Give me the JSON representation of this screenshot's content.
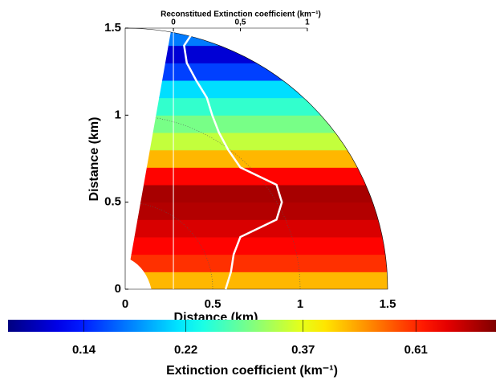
{
  "chart_data": {
    "type": "polar-sector-heatmap",
    "xlabel": "Distance (km)",
    "ylabel": "Distance (km)",
    "x2label": "Reconstitued Extinction coefficient (km⁻¹)",
    "xlim": [
      0,
      1.5
    ],
    "ylim": [
      0,
      1.5
    ],
    "xticks": [
      0,
      0.5,
      1,
      1.5
    ],
    "yticks": [
      0,
      0.5,
      1,
      1.5
    ],
    "x2lim": [
      -0.36,
      1.6
    ],
    "x2ticks": [
      0,
      {
        "value": 0.5,
        "label": "0,5"
      },
      1
    ],
    "field": {
      "height_bins": [
        0,
        0.1,
        0.2,
        0.3,
        0.4,
        0.5,
        0.6,
        0.7,
        0.8,
        0.9,
        1.0,
        1.1,
        1.2,
        1.3,
        1.4,
        1.5
      ],
      "values": [
        0.45,
        0.6,
        0.66,
        0.72,
        0.78,
        0.8,
        0.66,
        0.45,
        0.34,
        0.29,
        0.25,
        0.21,
        0.15,
        0.12,
        0.17
      ]
    },
    "series": [
      {
        "color": "#ffffff",
        "y": [
          0,
          0.1,
          0.2,
          0.3,
          0.4,
          0.5,
          0.6,
          0.7,
          0.8,
          0.9,
          1.0,
          1.1,
          1.2,
          1.3,
          1.4,
          1.48
        ],
        "values": [
          0.39,
          0.43,
          0.45,
          0.5,
          0.77,
          0.81,
          0.77,
          0.5,
          0.41,
          0.34,
          0.29,
          0.25,
          0.17,
          0.1,
          0.08,
          0.15
        ]
      }
    ],
    "colorbar": {
      "label": "Extinction coefficient (km⁻¹)",
      "colormap": "jet",
      "scale": "log",
      "clim": [
        0.1,
        0.87
      ],
      "ticks": [
        0.14,
        0.22,
        0.37,
        0.61
      ]
    }
  }
}
